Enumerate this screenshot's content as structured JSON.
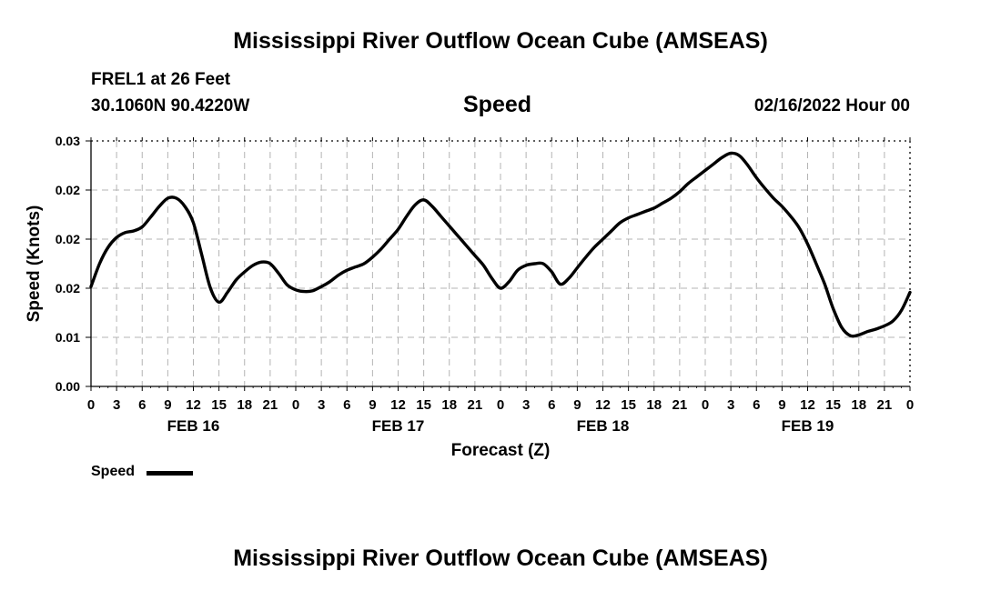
{
  "chart_data": {
    "type": "line",
    "title": "Mississippi River Outflow Ocean Cube (AMSEAS)",
    "station": "FREL1 at 26 Feet",
    "location": "30.1060N  90.4220W",
    "subtitle": "Speed",
    "datetime": "02/16/2022 Hour 00",
    "xlabel": "Forecast (Z)",
    "ylabel": "Speed (Knots)",
    "ylim": [
      0,
      0.03
    ],
    "yticks": [
      "0.00",
      "0.01",
      "0.02",
      "0.02",
      "0.02",
      "0.03"
    ],
    "xlim": [
      0,
      96
    ],
    "xticks": [
      "0",
      "3",
      "6",
      "9",
      "12",
      "15",
      "18",
      "21",
      "0",
      "3",
      "6",
      "9",
      "12",
      "15",
      "18",
      "21",
      "0",
      "3",
      "6",
      "9",
      "12",
      "15",
      "18",
      "21",
      "0",
      "3",
      "6",
      "9",
      "12",
      "15",
      "18",
      "21",
      "0"
    ],
    "day_labels": [
      {
        "label": "FEB 16",
        "hour": 12
      },
      {
        "label": "FEB 17",
        "hour": 36
      },
      {
        "label": "FEB 18",
        "hour": 60
      },
      {
        "label": "FEB 19",
        "hour": 84
      }
    ],
    "grid": true,
    "legend": "bottom-left",
    "series": [
      {
        "name": "Speed",
        "x": [
          0,
          1,
          2,
          3,
          4,
          5,
          6,
          7,
          8,
          9,
          10,
          11,
          12,
          13,
          14,
          15,
          16,
          17,
          18,
          19,
          20,
          21,
          22,
          23,
          24,
          25,
          26,
          27,
          28,
          29,
          30,
          31,
          32,
          33,
          34,
          35,
          36,
          37,
          38,
          39,
          40,
          41,
          42,
          43,
          44,
          45,
          46,
          47,
          48,
          49,
          50,
          51,
          52,
          53,
          54,
          55,
          56,
          57,
          58,
          59,
          60,
          61,
          62,
          63,
          64,
          65,
          66,
          67,
          68,
          69,
          70,
          71,
          72,
          73,
          74,
          75,
          76,
          77,
          78,
          79,
          80,
          81,
          82,
          83,
          84,
          85,
          86,
          87,
          88,
          89,
          90,
          91,
          92,
          93,
          94,
          95,
          96
        ],
        "y": [
          0.0122,
          0.015,
          0.017,
          0.0182,
          0.0188,
          0.019,
          0.0195,
          0.0207,
          0.022,
          0.023,
          0.023,
          0.022,
          0.02,
          0.016,
          0.012,
          0.0103,
          0.0115,
          0.013,
          0.014,
          0.0148,
          0.0152,
          0.015,
          0.0138,
          0.0124,
          0.0118,
          0.0116,
          0.0117,
          0.0122,
          0.0128,
          0.0136,
          0.0142,
          0.0146,
          0.015,
          0.0158,
          0.0168,
          0.018,
          0.0192,
          0.0208,
          0.0222,
          0.0228,
          0.022,
          0.0208,
          0.0196,
          0.0184,
          0.0172,
          0.016,
          0.0148,
          0.0132,
          0.012,
          0.0128,
          0.0142,
          0.0148,
          0.015,
          0.015,
          0.014,
          0.0125,
          0.0132,
          0.0145,
          0.0158,
          0.017,
          0.018,
          0.019,
          0.02,
          0.0206,
          0.021,
          0.0214,
          0.0218,
          0.0224,
          0.023,
          0.0238,
          0.0248,
          0.0256,
          0.0264,
          0.0272,
          0.028,
          0.0285,
          0.0282,
          0.027,
          0.0255,
          0.0242,
          0.023,
          0.022,
          0.0208,
          0.0194,
          0.0174,
          0.015,
          0.0125,
          0.0095,
          0.0072,
          0.0062,
          0.0063,
          0.0067,
          0.007,
          0.0074,
          0.008,
          0.0093,
          0.0115
        ]
      }
    ]
  },
  "footer_title": "Mississippi River Outflow Ocean Cube (AMSEAS)",
  "legend_label": "Speed"
}
